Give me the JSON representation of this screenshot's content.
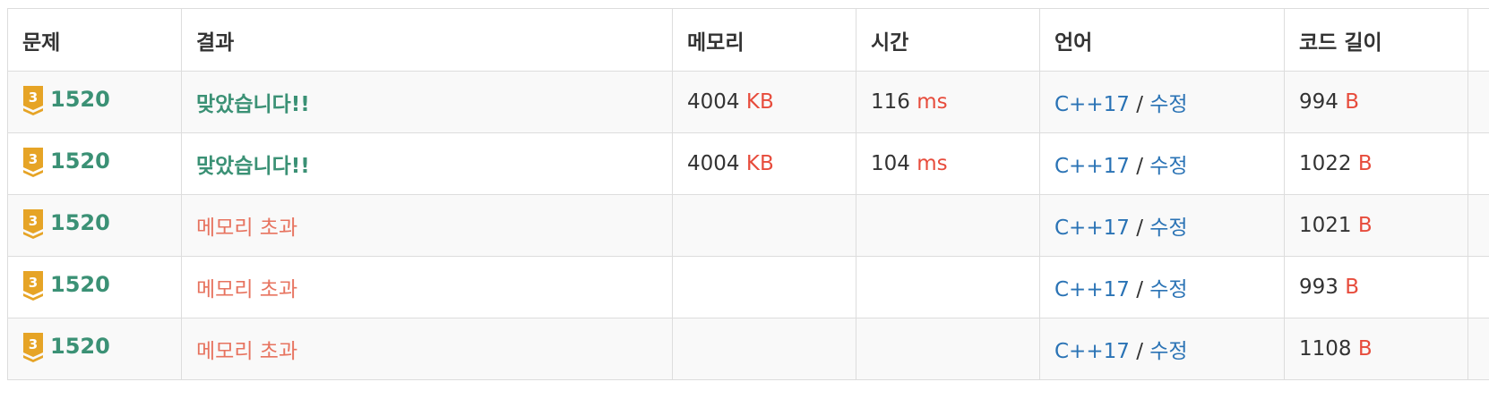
{
  "headers": {
    "problem": "문제",
    "result": "결과",
    "memory": "메모리",
    "time": "시간",
    "language": "언어",
    "code_length": "코드 길이"
  },
  "tier_badge": {
    "label": "3",
    "color": "#e0a020",
    "icon": "tier-badge-icon"
  },
  "rows": [
    {
      "problem_id": "1520",
      "result": "맞았습니다!!",
      "result_status": "accepted",
      "memory": "4004",
      "memory_unit": "KB",
      "time": "116",
      "time_unit": "ms",
      "language": "C++17",
      "separator": "/",
      "edit": "수정",
      "code_length": "994",
      "code_unit": "B"
    },
    {
      "problem_id": "1520",
      "result": "맞았습니다!!",
      "result_status": "accepted",
      "memory": "4004",
      "memory_unit": "KB",
      "time": "104",
      "time_unit": "ms",
      "language": "C++17",
      "separator": "/",
      "edit": "수정",
      "code_length": "1022",
      "code_unit": "B"
    },
    {
      "problem_id": "1520",
      "result": "메모리 초과",
      "result_status": "memory-limit-exceeded",
      "memory": "",
      "memory_unit": "",
      "time": "",
      "time_unit": "",
      "language": "C++17",
      "separator": "/",
      "edit": "수정",
      "code_length": "1021",
      "code_unit": "B"
    },
    {
      "problem_id": "1520",
      "result": "메모리 초과",
      "result_status": "memory-limit-exceeded",
      "memory": "",
      "memory_unit": "",
      "time": "",
      "time_unit": "",
      "language": "C++17",
      "separator": "/",
      "edit": "수정",
      "code_length": "993",
      "code_unit": "B"
    },
    {
      "problem_id": "1520",
      "result": "메모리 초과",
      "result_status": "memory-limit-exceeded",
      "memory": "",
      "memory_unit": "",
      "time": "",
      "time_unit": "",
      "language": "C++17",
      "separator": "/",
      "edit": "수정",
      "code_length": "1108",
      "code_unit": "B"
    }
  ],
  "colors": {
    "accepted": "#3b9175",
    "memory_limit_exceeded": "#e7735f",
    "unit": "#e74c3c",
    "link": "#2a73b5",
    "border": "#dddddd",
    "stripe": "#f9f9f9"
  }
}
